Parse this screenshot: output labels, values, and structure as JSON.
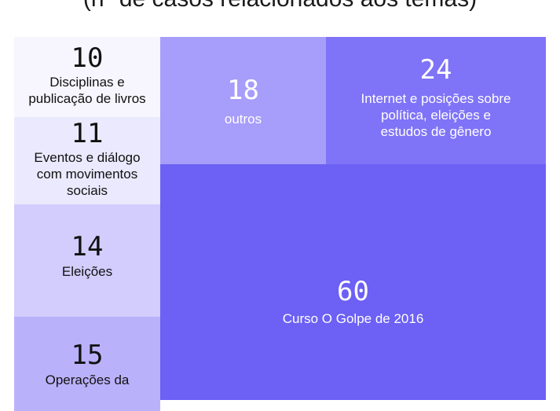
{
  "subtitle": "(nº de casos relacionados aos temas)",
  "colors": {
    "tile_disciplinas": "#f7f6fe",
    "tile_eventos": "#ebe9fd",
    "tile_eleicoes": "#d2cdfc",
    "tile_operacoes": "#b9b2fb",
    "tile_outros": "#a79dfb",
    "tile_internet": "#7f73f7",
    "tile_curso": "#6c60f5",
    "dark_text": "#111111",
    "light_text": "#ffffff"
  },
  "chart_data": {
    "type": "treemap",
    "title": "(nº de casos relacionados aos temas)",
    "items": [
      {
        "label": "Disciplinas e publicação de livros",
        "label_lines": [
          "Disciplinas e",
          "publicação de livros"
        ],
        "value": 10
      },
      {
        "label": "Eventos e diálogo com movimentos sociais",
        "label_lines": [
          "Eventos e diálogo",
          "com movimentos",
          "sociais"
        ],
        "value": 11
      },
      {
        "label": "Eleições",
        "label_lines": [
          "Eleições"
        ],
        "value": 14
      },
      {
        "label": "Operações da",
        "label_lines": [
          "Operações da"
        ],
        "value": 15
      },
      {
        "label": "outros",
        "label_lines": [
          "outros"
        ],
        "value": 18
      },
      {
        "label": "Internet e posições sobre política, eleições e estudos de gênero",
        "label_lines": [
          "Internet e posições sobre",
          "política, eleições e",
          "estudos de gênero"
        ],
        "value": 24
      },
      {
        "label": "Curso O Golpe de 2016",
        "label_lines": [
          "Curso O Golpe de 2016"
        ],
        "value": 60
      }
    ]
  }
}
